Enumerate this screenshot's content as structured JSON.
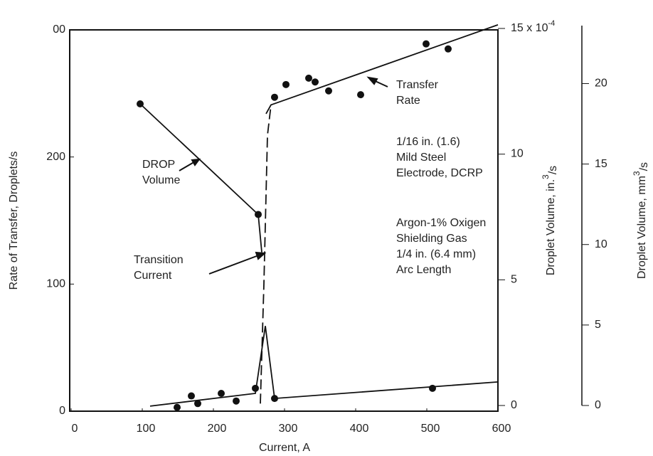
{
  "chart_data": {
    "type": "scatter",
    "xlabel": "Current, A",
    "ylabel": "Rate of Transfer, Droplets/s",
    "y2label": "Droplet Volume, in.",
    "y2label_sup": "3",
    "y2label_sub": "/s",
    "y3label": "Droplet Volume, mm",
    "y3label_sup": "3",
    "y3label_sub": "/s",
    "xlim": [
      0,
      600
    ],
    "xticks": [
      0,
      100,
      200,
      300,
      400,
      500,
      600
    ],
    "ylim": [
      0,
      300
    ],
    "yticks": [
      0,
      100,
      200,
      {
        "value": 300,
        "label": "00"
      }
    ],
    "y2lim": [
      0,
      15
    ],
    "y2ticks": [
      0,
      5,
      10,
      {
        "value": 15,
        "label": "15 x 10"
      }
    ],
    "y2tick_exponent": "-4",
    "y3lim": [
      0,
      23.6
    ],
    "y3ticks": [
      0,
      5,
      10,
      15,
      20
    ],
    "series": [
      {
        "color": "#111",
        "x": [
          286,
          302,
          334,
          343,
          362,
          407,
          499,
          530,
          149,
          169,
          178,
          211,
          232,
          259,
          286,
          508
        ],
        "values": [
          247,
          257,
          262,
          259,
          252,
          249,
          289,
          285,
          3,
          12,
          6,
          14,
          8,
          18,
          10,
          18
        ]
      },
      {
        "color": "#111",
        "axis": "y2",
        "x": [
          97,
          263
        ],
        "values": [
          12.0,
          7.6
        ]
      }
    ],
    "lines": [
      {
        "style": "solid",
        "x": [
          274,
          281,
          600
        ],
        "values": [
          234,
          241,
          304
        ]
      },
      {
        "style": "dashed",
        "x": [
          266,
          271,
          276,
          281
        ],
        "values": [
          6,
          100,
          217,
          241
        ]
      },
      {
        "style": "solid",
        "x": [
          111,
          259,
          273,
          286,
          600
        ],
        "values": [
          4,
          14,
          67,
          10,
          23
        ]
      },
      {
        "style": "solid",
        "axis": "y2",
        "x": [
          97,
          180,
          263,
          268
        ],
        "values": [
          12.0,
          9.8,
          7.6,
          6.1
        ]
      }
    ],
    "annotations": [
      [
        "Transfer",
        "Rate"
      ],
      [
        "DROP",
        "Volume"
      ],
      [
        "Transition",
        "Current"
      ],
      [
        "1/16 in. (1.6)",
        "Mild Steel",
        "Electrode, DCRP"
      ],
      [
        "Argon-1% Oxigen",
        "Shielding Gas",
        "1/4 in. (6.4 mm)",
        "Arc Length"
      ]
    ]
  }
}
